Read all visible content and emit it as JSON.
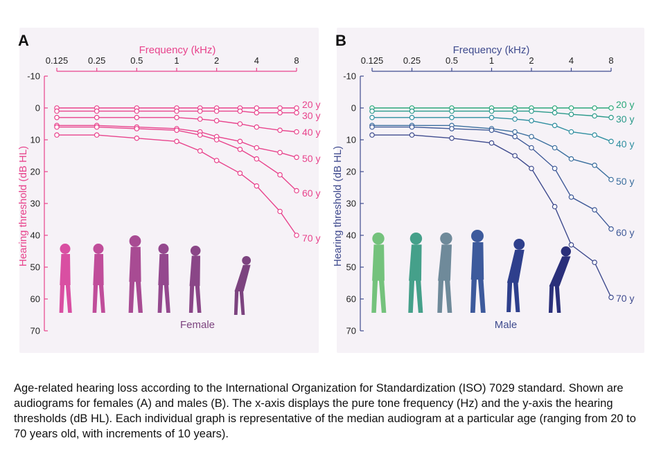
{
  "figure": {
    "panel_labels": [
      "A",
      "B"
    ],
    "sublabels": [
      "Female",
      "Male"
    ],
    "colors": {
      "female_axis": "#e8438c",
      "male_axis": "#3f4b8e",
      "panel_bg": "#f6f2f7",
      "female_silhouettes": [
        "#d94fa2",
        "#c04d9a",
        "#a84b93",
        "#94488e",
        "#8a4687",
        "#7c437f"
      ],
      "male_silhouettes": [
        "#74c27c",
        "#45a08a",
        "#6f8a9a",
        "#3d5a9c",
        "#2e3f8c",
        "#2a2f7a"
      ]
    }
  },
  "chart_data": [
    {
      "type": "line",
      "panel": "A",
      "xlabel": "Frequency (kHz)",
      "ylabel": "Hearing threshold (dB HL)",
      "x_scale": "log",
      "x_ticks": [
        0.125,
        0.25,
        0.5,
        1,
        2,
        4,
        8
      ],
      "x_tick_labels": [
        "0.125",
        "0.25",
        "0.5",
        "1",
        "2",
        "4",
        "8"
      ],
      "y_ticks": [
        -10,
        0,
        10,
        20,
        30,
        40,
        50,
        60,
        70
      ],
      "y_tick_labels": [
        "-10",
        "0",
        "10",
        "20",
        "30",
        "40",
        "50",
        "60",
        "70"
      ],
      "ylim": [
        -10,
        70
      ],
      "y_inverted": true,
      "x": [
        0.125,
        0.25,
        0.5,
        1,
        1.5,
        2,
        3,
        4,
        6,
        8
      ],
      "series": [
        {
          "name": "20 y",
          "values": [
            0,
            0,
            0,
            0,
            0,
            0,
            0,
            0,
            0,
            0
          ],
          "color": "#e8438c"
        },
        {
          "name": "30 y",
          "values": [
            1,
            1,
            1,
            1,
            1,
            1,
            1,
            1.5,
            1.5,
            1.5
          ],
          "color": "#e8438c"
        },
        {
          "name": "40 y",
          "values": [
            3,
            3,
            3,
            3,
            3.5,
            4,
            5,
            6,
            7,
            7.5
          ],
          "color": "#e8438c"
        },
        {
          "name": "50 y",
          "values": [
            5.5,
            5.5,
            6,
            6.5,
            7.5,
            9,
            10.5,
            12.5,
            14,
            15.5
          ],
          "color": "#e8438c"
        },
        {
          "name": "60 y",
          "values": [
            6,
            6,
            6.5,
            7,
            8.5,
            10,
            13,
            16,
            21,
            26
          ],
          "color": "#e8438c"
        },
        {
          "name": "70 y",
          "values": [
            8.5,
            8.5,
            9.5,
            10.5,
            13.5,
            16.5,
            20.5,
            24.5,
            32.5,
            40
          ],
          "color": "#e8438c"
        }
      ],
      "series_labels": [
        "20 y",
        "30 y",
        "40 y",
        "50 y",
        "60 y",
        "70 y"
      ]
    },
    {
      "type": "line",
      "panel": "B",
      "xlabel": "Frequency (kHz)",
      "ylabel": "Hearing threshold (dB HL)",
      "x_scale": "log",
      "x_ticks": [
        0.125,
        0.25,
        0.5,
        1,
        2,
        4,
        8
      ],
      "x_tick_labels": [
        "0.125",
        "0.25",
        "0.5",
        "1",
        "2",
        "4",
        "8"
      ],
      "y_ticks": [
        -10,
        0,
        10,
        20,
        30,
        40,
        50,
        60,
        70
      ],
      "y_tick_labels": [
        "-10",
        "0",
        "10",
        "20",
        "30",
        "40",
        "50",
        "60",
        "70"
      ],
      "ylim": [
        -10,
        70
      ],
      "y_inverted": true,
      "x": [
        0.125,
        0.25,
        0.5,
        1,
        1.5,
        2,
        3,
        4,
        6,
        8
      ],
      "series": [
        {
          "name": "20 y",
          "values": [
            0,
            0,
            0,
            0,
            0,
            0,
            0,
            0,
            0,
            0
          ],
          "color": "#2aa87a"
        },
        {
          "name": "30 y",
          "values": [
            1,
            1,
            1,
            1,
            1,
            1,
            1.5,
            2,
            2.5,
            3
          ],
          "color": "#2a9a8a"
        },
        {
          "name": "40 y",
          "values": [
            3,
            3,
            3,
            3,
            3.5,
            4,
            5.5,
            7.5,
            8.5,
            10.5
          ],
          "color": "#2f8fa0"
        },
        {
          "name": "50 y",
          "values": [
            5.5,
            5.5,
            5.5,
            6.5,
            7.5,
            9,
            12.5,
            16,
            18,
            22.5
          ],
          "color": "#3b6f9e"
        },
        {
          "name": "60 y",
          "values": [
            6,
            6,
            6.5,
            7,
            9,
            12.5,
            19,
            28,
            32,
            38
          ],
          "color": "#3f5a98"
        },
        {
          "name": "70 y",
          "values": [
            8.5,
            8.5,
            9.5,
            11,
            15,
            19,
            31,
            43,
            48.5,
            59.5
          ],
          "color": "#3f4b8e"
        }
      ],
      "series_labels": [
        "20 y",
        "30 y",
        "40 y",
        "50 y",
        "60 y",
        "70 y"
      ]
    }
  ],
  "caption": "Age-related hearing loss according to the International Organization for Standardization (ISO) 7029 standard. Shown are audiograms for females (A) and males (B). The x-axis displays the pure tone frequency (Hz) and the y-axis the hearing thresholds (dB HL). Each individual graph is representative of the median audiogram at a particular age (ranging from 20 to 70 years old, with increments of 10 years)."
}
